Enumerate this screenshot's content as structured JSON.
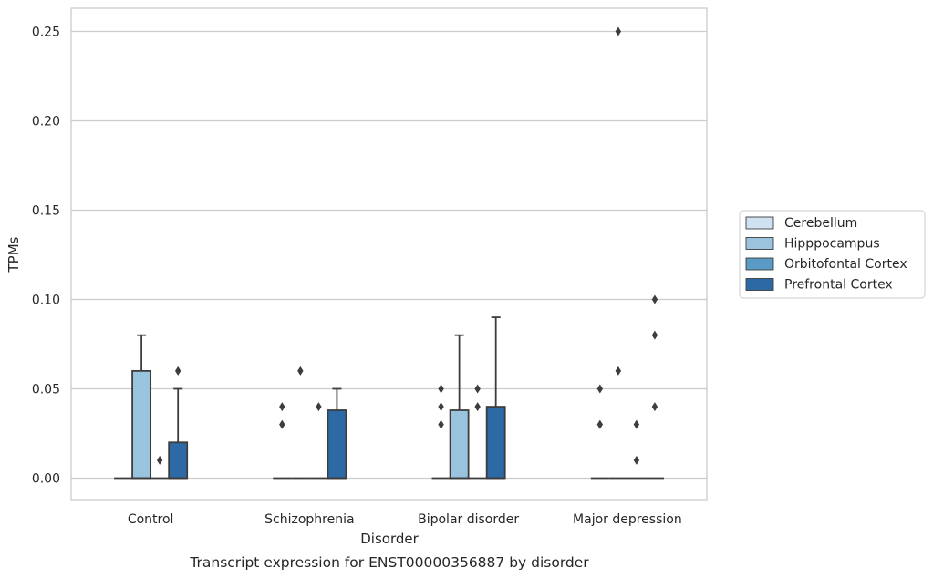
{
  "chart_data": {
    "type": "box",
    "caption": "Transcript expression for ENST00000356887 by disorder",
    "xlabel": "Disorder",
    "ylabel": "TPMs",
    "ylim": [
      -0.012,
      0.263
    ],
    "yticks": [
      0.0,
      0.05,
      0.1,
      0.15,
      0.2,
      0.25
    ],
    "ytick_labels": [
      "0.00",
      "0.05",
      "0.10",
      "0.15",
      "0.20",
      "0.25"
    ],
    "grid": "horizontal",
    "legend_position": "right",
    "categories": [
      "Control",
      "Schizophrenia",
      "Bipolar disorder",
      "Major depression"
    ],
    "series": [
      {
        "name": "Cerebellum",
        "color": "#d0e1f2",
        "boxes": [
          {
            "q1": 0,
            "median": 0,
            "q3": 0,
            "whisker_low": 0,
            "whisker_high": 0,
            "outliers": []
          },
          {
            "q1": 0,
            "median": 0,
            "q3": 0,
            "whisker_low": 0,
            "whisker_high": 0,
            "outliers": [
              0.03,
              0.04
            ]
          },
          {
            "q1": 0,
            "median": 0,
            "q3": 0,
            "whisker_low": 0,
            "whisker_high": 0,
            "outliers": [
              0.03,
              0.04,
              0.05
            ]
          },
          {
            "q1": 0,
            "median": 0,
            "q3": 0,
            "whisker_low": 0,
            "whisker_high": 0,
            "outliers": [
              0.03,
              0.05
            ]
          }
        ]
      },
      {
        "name": "Hipppocampus",
        "color": "#9ac3de",
        "boxes": [
          {
            "q1": 0,
            "median": 0,
            "q3": 0.06,
            "whisker_low": 0,
            "whisker_high": 0.08,
            "outliers": []
          },
          {
            "q1": 0,
            "median": 0,
            "q3": 0,
            "whisker_low": 0,
            "whisker_high": 0,
            "outliers": [
              0.06
            ]
          },
          {
            "q1": 0,
            "median": 0,
            "q3": 0.038,
            "whisker_low": 0,
            "whisker_high": 0.08,
            "outliers": []
          },
          {
            "q1": 0,
            "median": 0,
            "q3": 0,
            "whisker_low": 0,
            "whisker_high": 0,
            "outliers": [
              0.06,
              0.25
            ]
          }
        ]
      },
      {
        "name": "Orbitofontal Cortex",
        "color": "#5a9ac7",
        "boxes": [
          {
            "q1": 0,
            "median": 0,
            "q3": 0,
            "whisker_low": 0,
            "whisker_high": 0,
            "outliers": [
              0.01
            ]
          },
          {
            "q1": 0,
            "median": 0,
            "q3": 0,
            "whisker_low": 0,
            "whisker_high": 0,
            "outliers": [
              0.04
            ]
          },
          {
            "q1": 0,
            "median": 0,
            "q3": 0,
            "whisker_low": 0,
            "whisker_high": 0,
            "outliers": [
              0.04,
              0.05
            ]
          },
          {
            "q1": 0,
            "median": 0,
            "q3": 0,
            "whisker_low": 0,
            "whisker_high": 0,
            "outliers": [
              0.01,
              0.03
            ]
          }
        ]
      },
      {
        "name": "Prefrontal Cortex",
        "color": "#2d69a5",
        "boxes": [
          {
            "q1": 0,
            "median": 0,
            "q3": 0.02,
            "whisker_low": 0,
            "whisker_high": 0.05,
            "outliers": [
              0.06
            ]
          },
          {
            "q1": 0,
            "median": 0,
            "q3": 0.038,
            "whisker_low": 0,
            "whisker_high": 0.05,
            "outliers": []
          },
          {
            "q1": 0,
            "median": 0,
            "q3": 0.04,
            "whisker_low": 0,
            "whisker_high": 0.09,
            "outliers": []
          },
          {
            "q1": 0,
            "median": 0,
            "q3": 0,
            "whisker_low": 0,
            "whisker_high": 0,
            "outliers": [
              0.04,
              0.08,
              0.1
            ]
          }
        ]
      }
    ]
  }
}
